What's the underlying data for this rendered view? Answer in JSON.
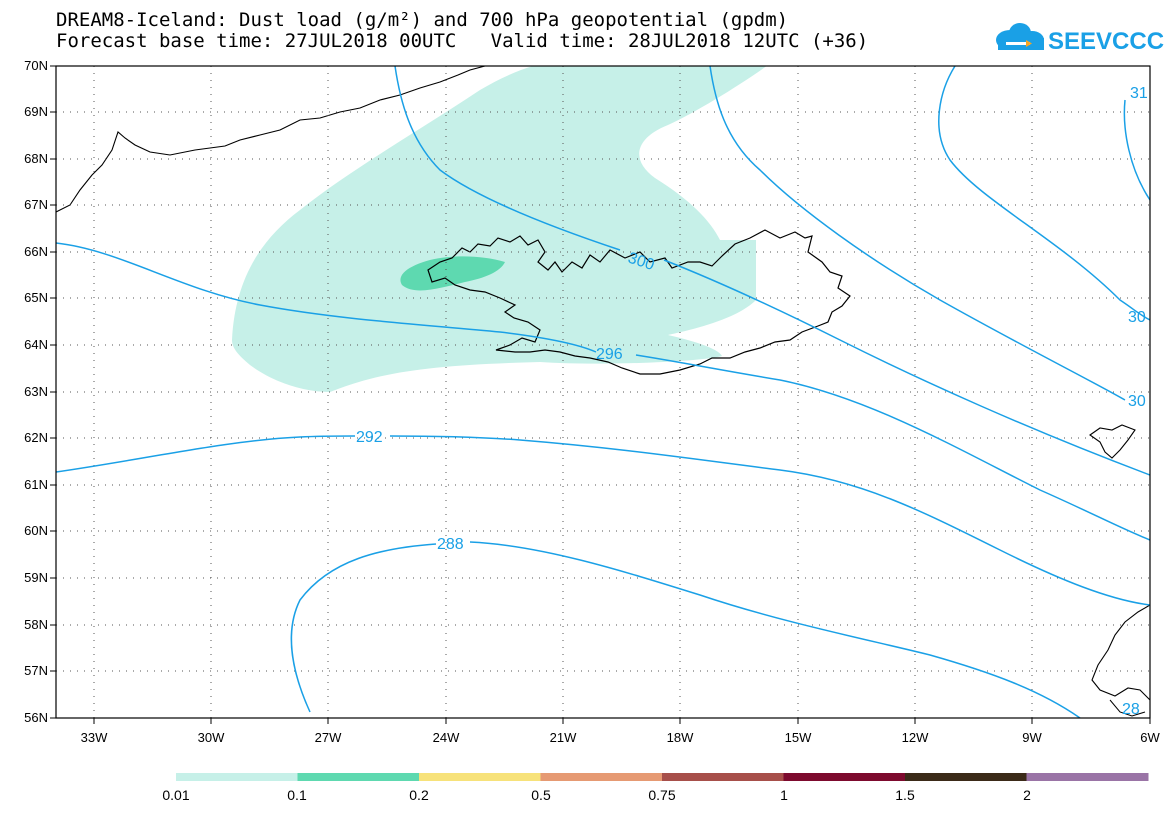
{
  "title_line1": "DREAM8-Iceland: Dust load (g/m²) and 700 hPa geopotential (gpdm)",
  "title_line2": "Forecast base time: 27JUL2018 00UTC   Valid time: 28JUL2018 12UTC (+36)",
  "logo_text": "SEEVCCC",
  "lat_labels": [
    "70N",
    "69N",
    "68N",
    "67N",
    "66N",
    "65N",
    "64N",
    "63N",
    "62N",
    "61N",
    "60N",
    "59N",
    "58N",
    "57N",
    "56N"
  ],
  "lon_labels": [
    "33W",
    "30W",
    "27W",
    "24W",
    "21W",
    "18W",
    "15W",
    "12W",
    "9W",
    "6W"
  ],
  "contour_labels": [
    "300",
    "296",
    "292",
    "288",
    "30",
    "30",
    "31",
    "28"
  ],
  "colorbar": {
    "labels": [
      "0.01",
      "0.1",
      "0.2",
      "0.5",
      "0.75",
      "1",
      "1.5",
      "2"
    ],
    "colors": [
      "#c6f0e8",
      "#5ed9b0",
      "#f7e27a",
      "#e69a73",
      "#a74f4a",
      "#7d0a2e",
      "#3b2a18",
      "#9a74a6"
    ]
  },
  "colors": {
    "contour": "#1aa0e6",
    "dust_low": "#c6f0e8",
    "dust_mid": "#5ed9b0"
  }
}
